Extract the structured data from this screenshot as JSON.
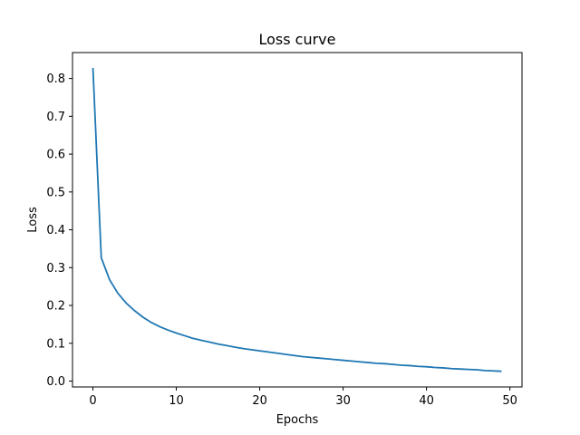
{
  "chart_data": {
    "type": "line",
    "title": "Loss curve",
    "xlabel": "Epochs",
    "ylabel": "Loss",
    "xlim": [
      -2.45,
      51.45
    ],
    "ylim": [
      -0.0155,
      0.8685
    ],
    "xticks": [
      0,
      10,
      20,
      30,
      40,
      50
    ],
    "yticks": [
      0.0,
      0.1,
      0.2,
      0.3,
      0.4,
      0.5,
      0.6,
      0.7,
      0.8
    ],
    "xtick_labels": [
      "0",
      "10",
      "20",
      "30",
      "40",
      "50"
    ],
    "ytick_labels": [
      "0.0",
      "0.1",
      "0.2",
      "0.3",
      "0.4",
      "0.5",
      "0.6",
      "0.7",
      "0.8"
    ],
    "grid": false,
    "line_color": "#1f77b4",
    "series": [
      {
        "x": [
          0,
          1,
          2,
          3,
          4,
          5,
          6,
          7,
          8,
          9,
          10,
          11,
          12,
          13,
          14,
          15,
          16,
          17,
          18,
          19,
          20,
          21,
          22,
          23,
          24,
          25,
          26,
          27,
          28,
          29,
          30,
          31,
          32,
          33,
          34,
          35,
          36,
          37,
          38,
          39,
          40,
          41,
          42,
          43,
          44,
          45,
          46,
          47,
          48,
          49
        ],
        "values": [
          0.828,
          0.326,
          0.268,
          0.232,
          0.206,
          0.186,
          0.169,
          0.155,
          0.144,
          0.135,
          0.127,
          0.12,
          0.113,
          0.108,
          0.103,
          0.098,
          0.094,
          0.09,
          0.086,
          0.083,
          0.08,
          0.077,
          0.074,
          0.071,
          0.068,
          0.065,
          0.063,
          0.061,
          0.059,
          0.057,
          0.055,
          0.053,
          0.051,
          0.049,
          0.047,
          0.046,
          0.044,
          0.042,
          0.041,
          0.039,
          0.038,
          0.036,
          0.035,
          0.033,
          0.032,
          0.031,
          0.03,
          0.028,
          0.027,
          0.026
        ]
      }
    ]
  }
}
